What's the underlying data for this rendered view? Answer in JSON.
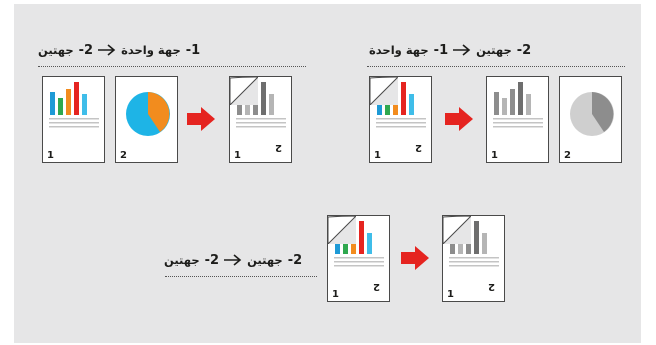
{
  "left_example": {
    "header": {
      "from_num": "1-",
      "from_text": "جهة واحدة",
      "to_num": "2-",
      "to_text": "جهتين"
    },
    "originals": [
      {
        "number": "1",
        "content": "color-bar-chart"
      },
      {
        "number": "2",
        "content": "color-pie-chart"
      }
    ],
    "output": {
      "front_number": "1",
      "back_number": "2",
      "content": "gray-bar-chart"
    }
  },
  "right_example": {
    "header": {
      "from_num": "2-",
      "from_text": "جهتين",
      "to_num": "1-",
      "to_text": "جهة واحدة"
    },
    "original": {
      "front_number": "1",
      "back_number": "2",
      "content": "color-bar-chart"
    },
    "outputs": [
      {
        "number": "1",
        "content": "gray-bar-chart"
      },
      {
        "number": "2",
        "content": "gray-pie-chart"
      }
    ]
  },
  "bottom_example": {
    "header": {
      "from_num": "2-",
      "from_text": "جهتين",
      "to_num": "2-",
      "to_text": "جهتين"
    },
    "original": {
      "front_number": "1",
      "back_number": "2",
      "content": "color-bar-chart"
    },
    "output": {
      "front_number": "1",
      "back_number": "2",
      "content": "gray-bar-chart"
    }
  },
  "colors": {
    "panel": "#e6e6e7",
    "arrow_red": "#e52420",
    "bars_color": [
      "#1e9ad6",
      "#2fa84f",
      "#f28c1e",
      "#e52420",
      "#3fbde9"
    ],
    "bars_gray": [
      "#8d8d8d",
      "#b5b5b5",
      "#8d8d8d",
      "#6e6e6e",
      "#b5b5b5"
    ],
    "pie_color": [
      "#f28c1e",
      "#1eb4e6"
    ],
    "pie_gray": [
      "#8d8d8d",
      "#cfcfcf"
    ]
  }
}
